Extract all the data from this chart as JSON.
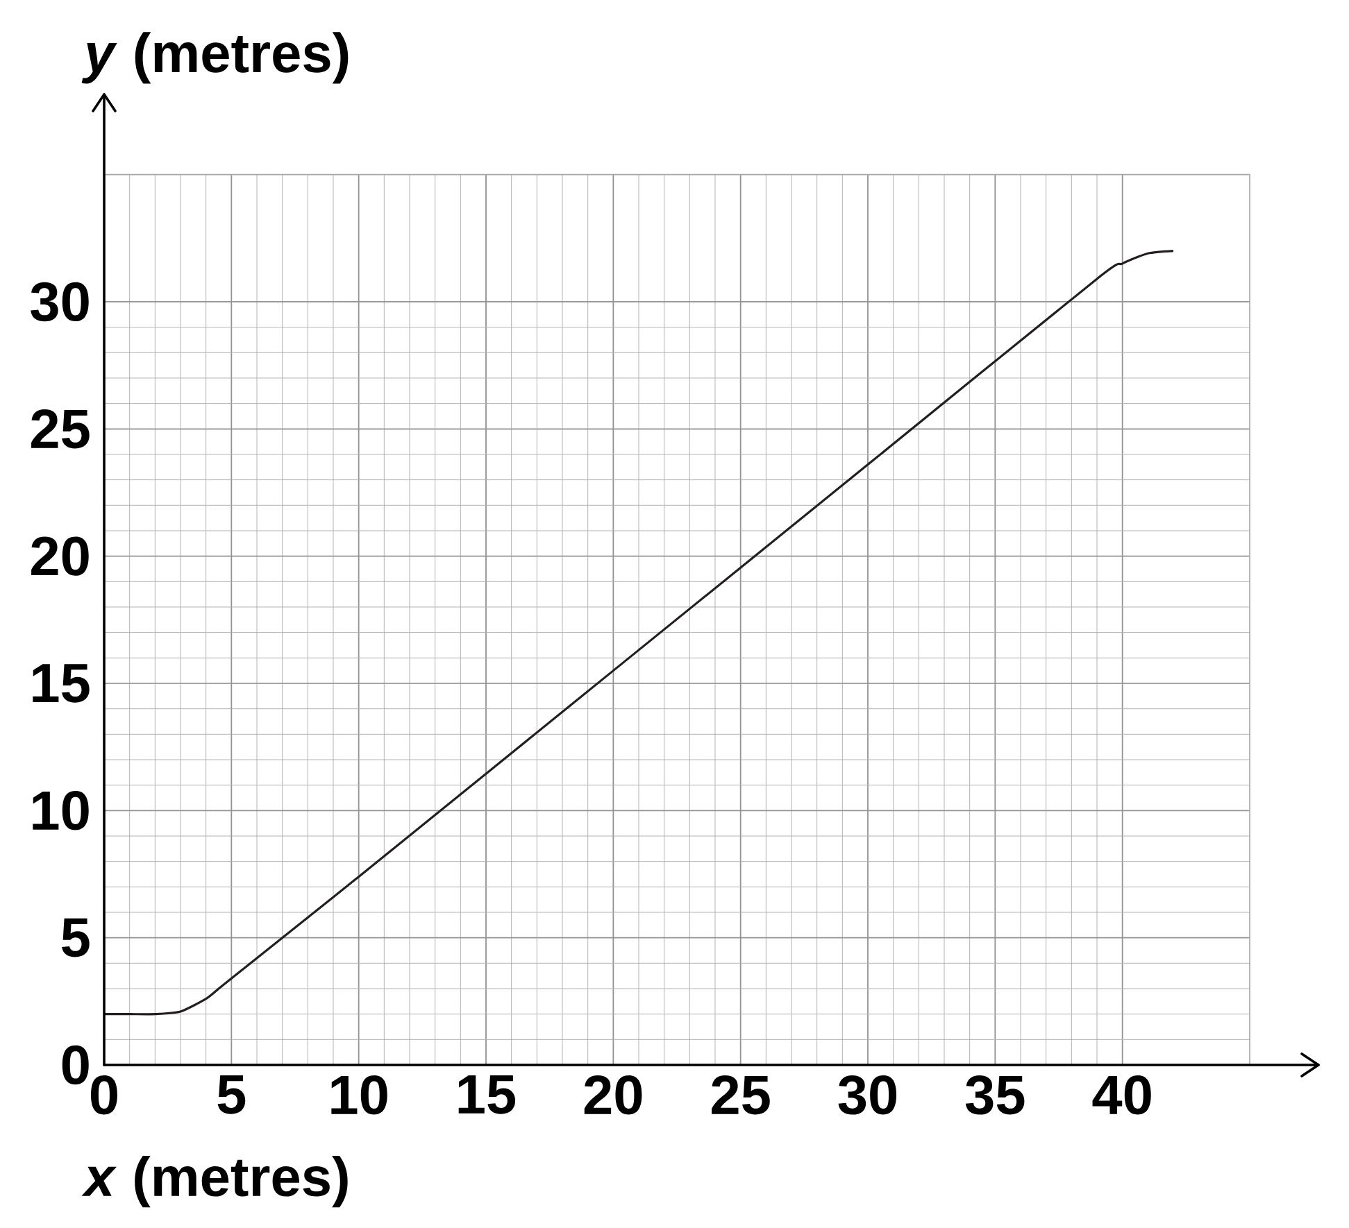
{
  "chart_data": {
    "type": "line",
    "xlabel": "*x* (metres)",
    "ylabel": "*y* (metres)",
    "x": [
      0,
      1,
      2,
      3,
      4,
      4.5,
      5,
      6,
      10,
      20,
      30,
      39,
      40,
      41,
      42
    ],
    "values": [
      2,
      2,
      2,
      2.1,
      2.6,
      3.0,
      3.4,
      4.2,
      7.4,
      15.5,
      23.6,
      30.9,
      31.5,
      31.9,
      32
    ],
    "color": "#231f20",
    "line_style": "solid",
    "xlim": [
      0,
      45
    ],
    "ylim": [
      0,
      35
    ],
    "xticks": [
      0,
      5,
      10,
      15,
      20,
      25,
      30,
      35,
      40
    ],
    "yticks": [
      0,
      5,
      10,
      15,
      20,
      25,
      30
    ],
    "grid": true
  }
}
